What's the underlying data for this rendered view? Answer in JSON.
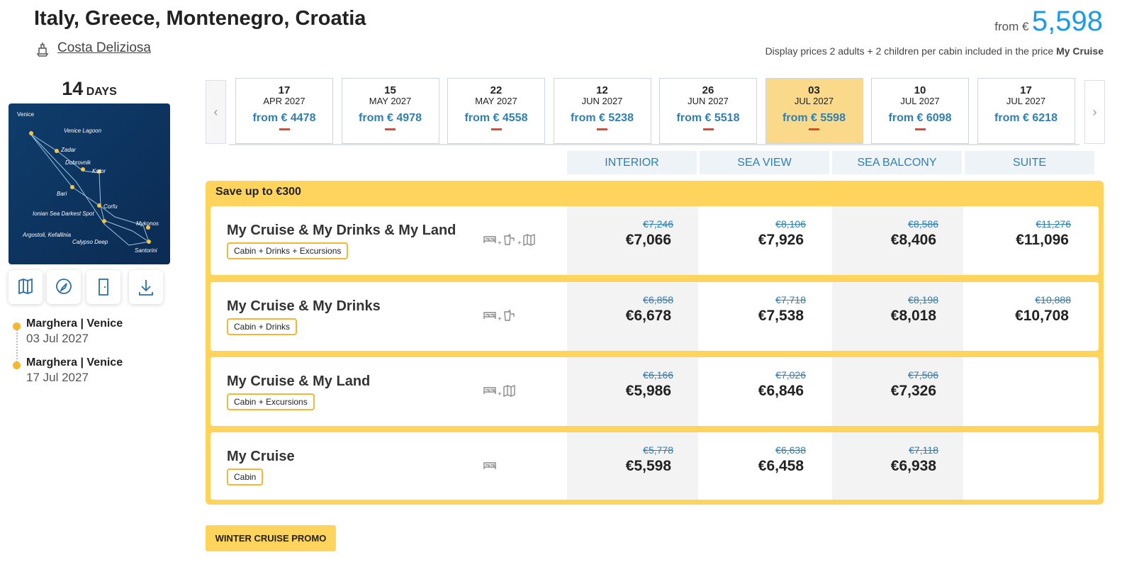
{
  "header": {
    "title": "Italy, Greece, Montenegro, Croatia",
    "ship": "Costa Deliziosa",
    "from_label": "from €",
    "from_price": "5,598",
    "note": "Display prices 2 adults + 2 children per cabin included in the price",
    "note_package": "My Cruise"
  },
  "duration": {
    "days": "14",
    "unit": "DAYS"
  },
  "map": {
    "labels": [
      "Venice",
      "Venice Lagoon",
      "Zadar",
      "Dubrovnik",
      "Kotor",
      "Bari",
      "Corfu",
      "Ionian Sea Darkest Spot",
      "Argostoli, Kefallinia",
      "Calypso Deep",
      "Mykonos",
      "Santorini"
    ]
  },
  "itinerary": [
    {
      "port": "Marghera | Venice",
      "date": "03 Jul 2027"
    },
    {
      "port": "Marghera | Venice",
      "date": "17 Jul 2027"
    }
  ],
  "dates": [
    {
      "day": "17",
      "month": "APR 2027",
      "price": "from € 4478"
    },
    {
      "day": "15",
      "month": "MAY 2027",
      "price": "from € 4978"
    },
    {
      "day": "22",
      "month": "MAY 2027",
      "price": "from € 4558"
    },
    {
      "day": "12",
      "month": "JUN 2027",
      "price": "from € 5238"
    },
    {
      "day": "26",
      "month": "JUN 2027",
      "price": "from € 5518"
    },
    {
      "day": "03",
      "month": "JUL 2027",
      "price": "from € 5598",
      "selected": true
    },
    {
      "day": "10",
      "month": "JUL 2027",
      "price": "from € 6098"
    },
    {
      "day": "17",
      "month": "JUL 2027",
      "price": "from € 6218"
    }
  ],
  "cabins": [
    "INTERIOR",
    "SEA VIEW",
    "SEA BALCONY",
    "SUITE"
  ],
  "promo": {
    "title": "Save up to €300",
    "packages": [
      {
        "name": "My Cruise & My Drinks & My Land",
        "tag": "Cabin + Drinks + Excursions",
        "prices": [
          {
            "old": "€7,246",
            "new": "€7,066"
          },
          {
            "old": "€8,106",
            "new": "€7,926"
          },
          {
            "old": "€8,586",
            "new": "€8,406"
          },
          {
            "old": "€11,276",
            "new": "€11,096"
          }
        ]
      },
      {
        "name": "My Cruise & My Drinks",
        "tag": "Cabin + Drinks",
        "prices": [
          {
            "old": "€6,858",
            "new": "€6,678"
          },
          {
            "old": "€7,718",
            "new": "€7,538"
          },
          {
            "old": "€8,198",
            "new": "€8,018"
          },
          {
            "old": "€10,888",
            "new": "€10,708"
          }
        ]
      },
      {
        "name": "My Cruise & My Land",
        "tag": "Cabin + Excursions",
        "prices": [
          {
            "old": "€6,166",
            "new": "€5,986"
          },
          {
            "old": "€7,026",
            "new": "€6,846"
          },
          {
            "old": "€7,506",
            "new": "€7,326"
          },
          null
        ]
      },
      {
        "name": "My Cruise",
        "tag": "Cabin",
        "prices": [
          {
            "old": "€5,778",
            "new": "€5,598"
          },
          {
            "old": "€6,638",
            "new": "€6,458"
          },
          {
            "old": "€7,118",
            "new": "€6,938"
          },
          null
        ]
      }
    ]
  },
  "button": "WINTER CRUISE PROMO"
}
